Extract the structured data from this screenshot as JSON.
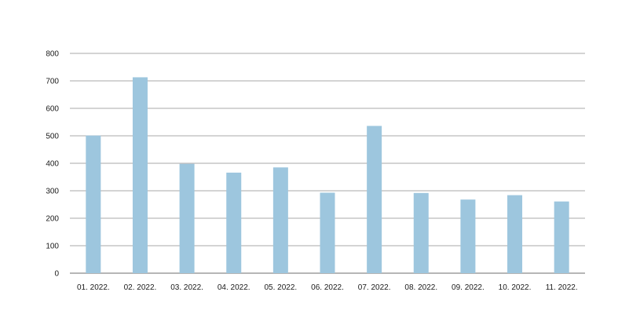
{
  "chart_data": {
    "type": "bar",
    "categories": [
      "01. 2022.",
      "02. 2022.",
      "03. 2022.",
      "04. 2022.",
      "05. 2022.",
      "06. 2022.",
      "07. 2022.",
      "08. 2022.",
      "09. 2022.",
      "10. 2022.",
      "11. 2022."
    ],
    "values": [
      501,
      713,
      398,
      366,
      385,
      293,
      536,
      292,
      268,
      284,
      261
    ],
    "title": "",
    "xlabel": "",
    "ylabel": "",
    "ylim": [
      0,
      800
    ],
    "yticks": [
      0,
      100,
      200,
      300,
      400,
      500,
      600,
      700,
      800
    ],
    "grid": true,
    "legend": "none",
    "bar_color": "#9dc6de",
    "grid_color": "#8c8c8c"
  }
}
